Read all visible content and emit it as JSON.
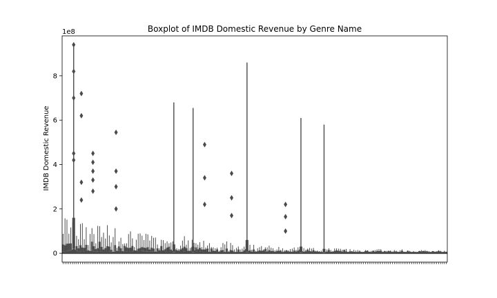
{
  "chart_data": {
    "type": "box",
    "title": "Boxplot of IMDB Domestic Revenue by Genre Name",
    "xlabel": "",
    "ylabel": "IMDB Domestic Revenue",
    "y_offset_label": "1e8",
    "ylim": [
      -40000000,
      980000000
    ],
    "yticks": [
      0,
      200000000,
      400000000,
      600000000,
      800000000
    ],
    "ytick_labels": [
      "0",
      "2",
      "4",
      "6",
      "8"
    ],
    "grid": false,
    "legend": "none",
    "box_color": "#4a4a4a",
    "categories_note": "x-axis has ~200 overlapping rotated genre-name labels that are illegible",
    "highlights": [
      {
        "position": 0.03,
        "max": 940000000,
        "q3": 160000000,
        "median": 20000000
      },
      {
        "position": 0.29,
        "max": 680000000,
        "q3": 40000000,
        "median": 5000000
      },
      {
        "position": 0.34,
        "max": 655000000,
        "q3": 30000000,
        "median": 4000000
      },
      {
        "position": 0.48,
        "max": 860000000,
        "q3": 60000000,
        "median": 6000000
      },
      {
        "position": 0.62,
        "max": 610000000,
        "q3": 30000000,
        "median": 3000000
      },
      {
        "position": 0.68,
        "max": 580000000,
        "q3": 20000000,
        "median": 2000000
      }
    ],
    "outliers": [
      {
        "position": 0.03,
        "values": [
          940000000,
          820000000,
          700000000,
          450000000,
          420000000
        ]
      },
      {
        "position": 0.05,
        "values": [
          720000000,
          620000000,
          320000000,
          240000000
        ]
      },
      {
        "position": 0.08,
        "values": [
          450000000,
          410000000,
          370000000,
          330000000,
          280000000
        ]
      },
      {
        "position": 0.14,
        "values": [
          545000000,
          370000000,
          300000000,
          200000000
        ]
      },
      {
        "position": 0.37,
        "values": [
          490000000,
          340000000,
          220000000
        ]
      },
      {
        "position": 0.44,
        "values": [
          360000000,
          250000000,
          170000000
        ]
      },
      {
        "position": 0.58,
        "values": [
          220000000,
          165000000,
          100000000
        ]
      }
    ]
  }
}
